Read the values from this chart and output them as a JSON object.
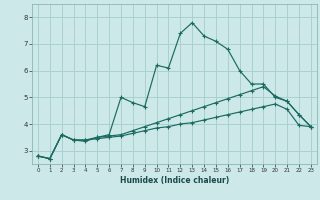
{
  "xlabel": "Humidex (Indice chaleur)",
  "background_color": "#cce8e8",
  "grid_color": "#aad0d0",
  "line_color": "#1a6a60",
  "xlim": [
    -0.5,
    23.5
  ],
  "ylim": [
    2.5,
    8.5
  ],
  "xticks": [
    0,
    1,
    2,
    3,
    4,
    5,
    6,
    7,
    8,
    9,
    10,
    11,
    12,
    13,
    14,
    15,
    16,
    17,
    18,
    19,
    20,
    21,
    22,
    23
  ],
  "yticks": [
    3,
    4,
    5,
    6,
    7,
    8
  ],
  "line1_x": [
    0,
    1,
    2,
    3,
    4,
    5,
    6,
    7,
    8,
    9,
    10,
    11,
    12,
    13,
    14,
    15,
    16,
    17,
    18,
    19,
    20,
    21,
    22,
    23
  ],
  "line1_y": [
    2.8,
    2.7,
    3.6,
    3.4,
    3.4,
    3.45,
    3.5,
    3.55,
    3.65,
    3.75,
    3.85,
    3.9,
    4.0,
    4.05,
    4.15,
    4.25,
    4.35,
    4.45,
    4.55,
    4.65,
    4.75,
    4.55,
    3.95,
    3.9
  ],
  "line2_x": [
    0,
    1,
    2,
    3,
    4,
    5,
    6,
    7,
    8,
    9,
    10,
    11,
    12,
    13,
    14,
    15,
    16,
    17,
    18,
    19,
    20,
    21,
    22,
    23
  ],
  "line2_y": [
    2.8,
    2.7,
    3.6,
    3.4,
    3.4,
    3.5,
    3.55,
    3.6,
    3.75,
    3.9,
    4.05,
    4.2,
    4.35,
    4.5,
    4.65,
    4.8,
    4.95,
    5.1,
    5.25,
    5.4,
    5.05,
    4.85,
    4.35,
    3.9
  ],
  "line3_x": [
    0,
    1,
    2,
    3,
    4,
    5,
    6,
    7,
    8,
    9,
    10,
    11,
    12,
    13,
    14,
    15,
    16,
    17,
    18,
    19,
    20,
    21,
    22,
    23
  ],
  "line3_y": [
    2.8,
    2.7,
    3.6,
    3.4,
    3.35,
    3.5,
    3.6,
    5.0,
    4.8,
    4.65,
    6.2,
    6.1,
    7.4,
    7.8,
    7.3,
    7.1,
    6.8,
    6.0,
    5.5,
    5.5,
    5.0,
    4.85,
    4.35,
    3.9
  ]
}
